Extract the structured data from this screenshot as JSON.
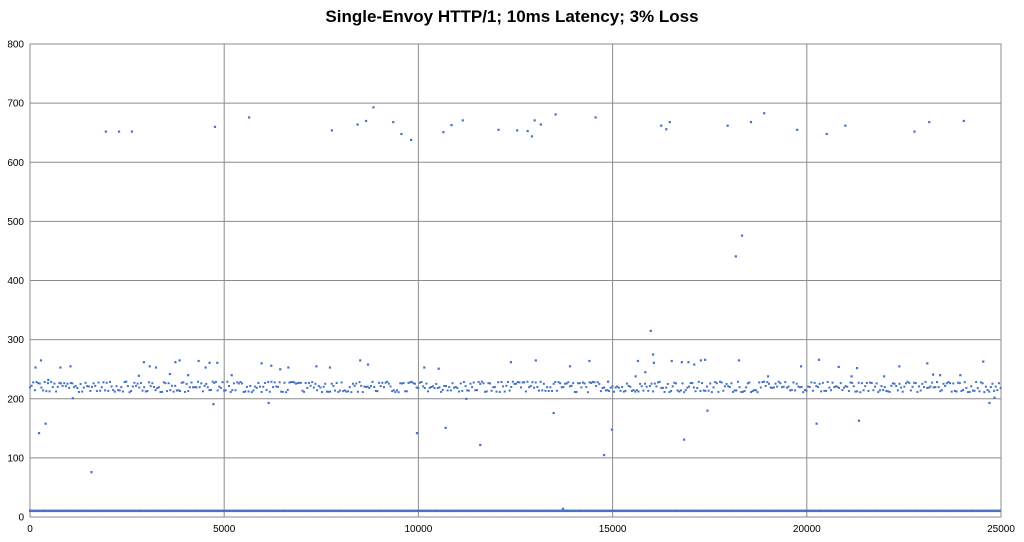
{
  "chart_data": {
    "type": "scatter",
    "title": "Single-Envoy HTTP/1; 10ms Latency; 3% Loss",
    "xlabel": "",
    "ylabel": "",
    "xlim": [
      0,
      25000
    ],
    "ylim": [
      0,
      800
    ],
    "xticks": [
      0,
      5000,
      10000,
      15000,
      20000,
      25000
    ],
    "yticks": [
      0,
      100,
      200,
      300,
      400,
      500,
      600,
      700,
      800
    ],
    "grid": "major",
    "legend": "none",
    "marker_color": "#4472C4",
    "series": [
      {
        "baseline_band": {
          "x_start": 0,
          "x_end": 25000,
          "y": 10
        },
        "main_band": {
          "x_start": 0,
          "x_end": 25000,
          "y_min": 205,
          "y_max": 230
        },
        "points": [
          [
            140,
            253
          ],
          [
            230,
            142
          ],
          [
            280,
            265
          ],
          [
            400,
            158
          ],
          [
            470,
            232
          ],
          [
            780,
            253
          ],
          [
            1040,
            255
          ],
          [
            1100,
            201
          ],
          [
            1580,
            76
          ],
          [
            1950,
            652
          ],
          [
            2290,
            652
          ],
          [
            2620,
            652
          ],
          [
            2800,
            239
          ],
          [
            2930,
            262
          ],
          [
            3080,
            255
          ],
          [
            3240,
            253
          ],
          [
            3600,
            242
          ],
          [
            3740,
            262
          ],
          [
            3850,
            265
          ],
          [
            4070,
            240
          ],
          [
            4340,
            264
          ],
          [
            4520,
            253
          ],
          [
            4620,
            261
          ],
          [
            4720,
            191
          ],
          [
            4760,
            660
          ],
          [
            4820,
            261
          ],
          [
            5190,
            240
          ],
          [
            5640,
            676
          ],
          [
            5960,
            260
          ],
          [
            6140,
            193
          ],
          [
            6210,
            256
          ],
          [
            6440,
            250
          ],
          [
            6650,
            253
          ],
          [
            7370,
            255
          ],
          [
            7770,
            654
          ],
          [
            7720,
            253
          ],
          [
            8430,
            664
          ],
          [
            8500,
            265
          ],
          [
            8650,
            670
          ],
          [
            8700,
            258
          ],
          [
            8840,
            693
          ],
          [
            9350,
            668
          ],
          [
            9560,
            648
          ],
          [
            9810,
            638
          ],
          [
            9960,
            142
          ],
          [
            10150,
            253
          ],
          [
            10520,
            251
          ],
          [
            10640,
            651
          ],
          [
            10700,
            151
          ],
          [
            10850,
            663
          ],
          [
            11140,
            671
          ],
          [
            11230,
            200
          ],
          [
            11590,
            122
          ],
          [
            12060,
            655
          ],
          [
            12380,
            262
          ],
          [
            12540,
            654
          ],
          [
            12810,
            653
          ],
          [
            12920,
            644
          ],
          [
            12990,
            671
          ],
          [
            13020,
            265
          ],
          [
            13150,
            664
          ],
          [
            13480,
            176
          ],
          [
            13530,
            681
          ],
          [
            13720,
            14
          ],
          [
            13900,
            255
          ],
          [
            14400,
            264
          ],
          [
            14560,
            676
          ],
          [
            14780,
            105
          ],
          [
            14880,
            229
          ],
          [
            14980,
            148
          ],
          [
            15590,
            238
          ],
          [
            15650,
            264
          ],
          [
            15840,
            245
          ],
          [
            15980,
            315
          ],
          [
            16040,
            275
          ],
          [
            16060,
            261
          ],
          [
            16250,
            662
          ],
          [
            16380,
            656
          ],
          [
            16470,
            668
          ],
          [
            16520,
            264
          ],
          [
            16780,
            262
          ],
          [
            16840,
            131
          ],
          [
            16950,
            262
          ],
          [
            17100,
            258
          ],
          [
            17270,
            265
          ],
          [
            17380,
            266
          ],
          [
            17440,
            180
          ],
          [
            17960,
            662
          ],
          [
            18170,
            441
          ],
          [
            18250,
            265
          ],
          [
            18330,
            476
          ],
          [
            18560,
            668
          ],
          [
            18900,
            683
          ],
          [
            19000,
            238
          ],
          [
            19750,
            655
          ],
          [
            19850,
            255
          ],
          [
            20250,
            158
          ],
          [
            20310,
            266
          ],
          [
            20510,
            648
          ],
          [
            20820,
            254
          ],
          [
            20990,
            662
          ],
          [
            21150,
            238
          ],
          [
            21290,
            252
          ],
          [
            21340,
            163
          ],
          [
            21990,
            238
          ],
          [
            22380,
            255
          ],
          [
            22770,
            652
          ],
          [
            23100,
            260
          ],
          [
            23150,
            668
          ],
          [
            23250,
            241
          ],
          [
            23430,
            240
          ],
          [
            23950,
            240
          ],
          [
            24040,
            670
          ],
          [
            24540,
            263
          ],
          [
            24700,
            193
          ],
          [
            24830,
            202
          ]
        ]
      }
    ]
  }
}
